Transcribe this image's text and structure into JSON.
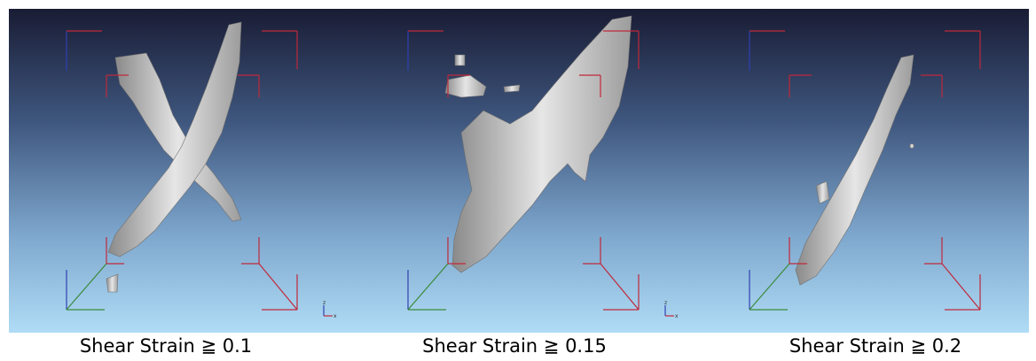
{
  "panels": [
    {
      "caption": "Shear Strain ≧ 0.1",
      "triad": [
        "z",
        "x"
      ]
    },
    {
      "caption": "Shear Strain ≧ 0.15",
      "triad": [
        "z",
        "x"
      ]
    },
    {
      "caption": "Shear Strain ≧ 0.2"
    }
  ]
}
